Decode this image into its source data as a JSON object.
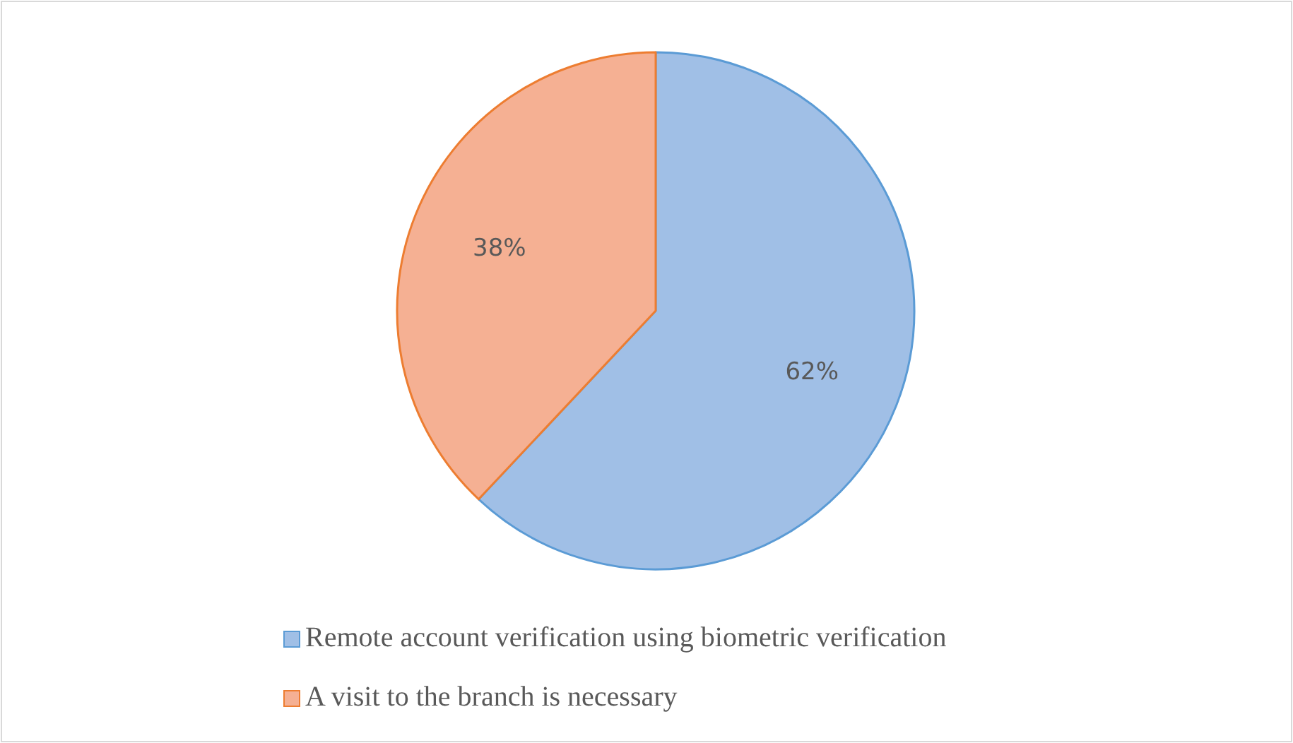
{
  "chart_data": {
    "type": "pie",
    "categories": [
      "Remote account verification using biometric verification",
      "A visit to the branch is necessary"
    ],
    "values": [
      62,
      38
    ],
    "colors": [
      "#a0bfe6",
      "#f5b093"
    ],
    "value_labels": [
      "62%",
      "38%"
    ],
    "legend": "bottom"
  }
}
